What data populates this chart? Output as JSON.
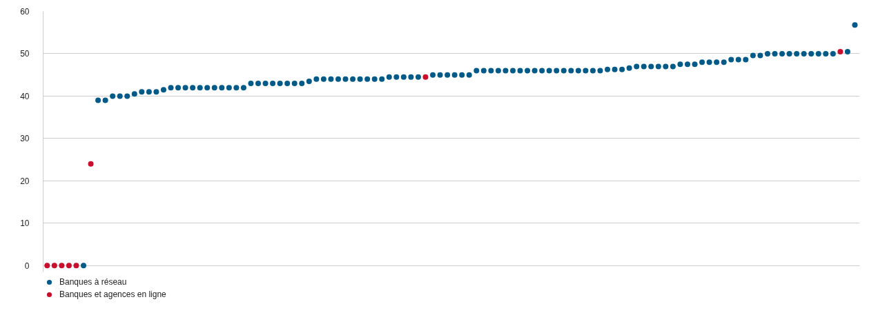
{
  "chart_data": {
    "type": "scatter",
    "categories": [
      null,
      null,
      null,
      null,
      null,
      null,
      null,
      null,
      null,
      null,
      null,
      null,
      null,
      null,
      null,
      null,
      null,
      null,
      null,
      null,
      null,
      null,
      null,
      null,
      null,
      null,
      null,
      null,
      null,
      null,
      null,
      null,
      null,
      null,
      null,
      null,
      null,
      null,
      null,
      null,
      null,
      null,
      null,
      null,
      null,
      null,
      null,
      null,
      null,
      null,
      null,
      null,
      null,
      null,
      null,
      null,
      null,
      null,
      null,
      null,
      null,
      null,
      null,
      null,
      null,
      null,
      null,
      null,
      null,
      null,
      null,
      null,
      null,
      null,
      null,
      null,
      null,
      null,
      null,
      null,
      null,
      null,
      null,
      null,
      null,
      null,
      null,
      null,
      null,
      null,
      null,
      null,
      null,
      null,
      null,
      null,
      null,
      null,
      null,
      null,
      null,
      null,
      null,
      null,
      null,
      null,
      null,
      null,
      null,
      null,
      null,
      null
    ],
    "series": [
      {
        "name": "Banques à réseau",
        "color": "#005a87",
        "values": [
          null,
          null,
          null,
          null,
          null,
          0,
          null,
          39,
          39,
          40,
          40,
          40,
          40.5,
          41,
          41,
          41,
          41.5,
          42,
          42,
          42,
          42,
          42,
          42,
          42,
          42,
          42,
          42,
          42,
          43,
          43,
          43,
          43,
          43,
          43,
          43,
          43,
          43.5,
          44,
          44,
          44,
          44,
          44,
          44,
          44,
          44,
          44,
          44,
          44.5,
          44.5,
          44.5,
          44.5,
          44.5,
          null,
          45,
          45,
          45,
          45,
          45,
          45,
          46,
          46,
          46,
          46,
          46,
          46,
          46,
          46,
          46,
          46,
          46,
          46,
          46,
          46,
          46,
          46,
          46,
          46,
          46.3,
          46.3,
          46.3,
          46.6,
          47,
          47,
          47,
          47,
          47,
          47,
          47.5,
          47.5,
          47.5,
          48,
          48,
          48,
          48,
          48.6,
          48.6,
          48.6,
          49.6,
          49.6,
          50,
          50,
          50,
          50,
          50,
          50,
          50,
          50,
          50,
          50,
          null,
          50.5,
          56.8
        ]
      },
      {
        "name": "Banques et agences en ligne",
        "color": "#c8102e",
        "values": [
          0,
          0,
          0,
          0,
          0,
          null,
          24,
          null,
          null,
          null,
          null,
          null,
          null,
          null,
          null,
          null,
          null,
          null,
          null,
          null,
          null,
          null,
          null,
          null,
          null,
          null,
          null,
          null,
          null,
          null,
          null,
          null,
          null,
          null,
          null,
          null,
          null,
          null,
          null,
          null,
          null,
          null,
          null,
          null,
          null,
          null,
          null,
          null,
          null,
          null,
          null,
          null,
          44.5,
          null,
          null,
          null,
          null,
          null,
          null,
          null,
          null,
          null,
          null,
          null,
          null,
          null,
          null,
          null,
          null,
          null,
          null,
          null,
          null,
          null,
          null,
          null,
          null,
          null,
          null,
          null,
          null,
          null,
          null,
          null,
          null,
          null,
          null,
          null,
          null,
          null,
          null,
          null,
          null,
          null,
          null,
          null,
          null,
          null,
          null,
          null,
          null,
          null,
          null,
          null,
          null,
          null,
          null,
          null,
          null,
          50.5,
          null,
          null
        ]
      }
    ],
    "ylim": [
      -1.5,
      60
    ],
    "yticks": [
      0,
      10,
      20,
      30,
      40,
      50,
      60
    ],
    "grid": "y",
    "legend": "bottom left",
    "marker": "circle",
    "tick_labels": "y"
  }
}
